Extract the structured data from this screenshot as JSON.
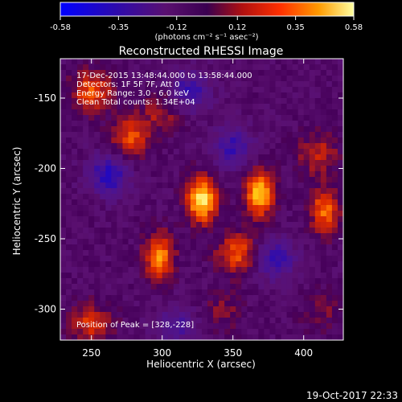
{
  "chart_data": {
    "type": "heatmap",
    "title": "Reconstructed RHESSI Image",
    "xlabel": "Heliocentric X (arcsec)",
    "ylabel": "Heliocentric Y (arcsec)",
    "xlim": [
      228,
      428
    ],
    "ylim": [
      -322,
      -122
    ],
    "x_ticks": [
      250,
      300,
      350,
      400
    ],
    "y_ticks": [
      -150,
      -200,
      -250,
      -300
    ],
    "colorbar": {
      "range": [
        -0.58,
        0.58
      ],
      "ticks": [
        "-0.58",
        "-0.35",
        "-0.12",
        "0.12",
        "0.35",
        "0.58"
      ],
      "tick_values": [
        -0.58,
        -0.35,
        -0.12,
        0.12,
        0.35,
        0.58
      ],
      "units": "(photons cm⁻² s⁻¹ asec⁻²)",
      "colormap": [
        "#0000ff",
        "#2a0aa0",
        "#5a1070",
        "#3a0060",
        "#b01010",
        "#ff3000",
        "#ff9a00",
        "#ffff90"
      ]
    },
    "annotations": [
      "17-Dec-2015 13:48:44.000 to 13:58:44.000",
      "Detectors: 1F 5F 7F, Att 0",
      "Energy Range: 3.0 - 6.0 keV",
      "Clean    Total counts: 1.34E+04"
    ],
    "peak_label": "Position of Peak = [328,-228]",
    "peak_position": [
      328,
      -228
    ],
    "sources": [
      {
        "x": 328,
        "y": -222,
        "value": 0.58
      },
      {
        "x": 369,
        "y": -218,
        "value": 0.5
      },
      {
        "x": 298,
        "y": -262,
        "value": 0.42
      },
      {
        "x": 353,
        "y": -260,
        "value": 0.32
      },
      {
        "x": 415,
        "y": -230,
        "value": 0.36
      },
      {
        "x": 410,
        "y": -190,
        "value": 0.22
      },
      {
        "x": 278,
        "y": -178,
        "value": 0.3
      },
      {
        "x": 250,
        "y": -145,
        "value": 0.32
      },
      {
        "x": 250,
        "y": -310,
        "value": 0.26
      },
      {
        "x": 300,
        "y": -160,
        "value": 0.18
      },
      {
        "x": 343,
        "y": -300,
        "value": 0.12
      },
      {
        "x": 413,
        "y": -300,
        "value": 0.12
      },
      {
        "x": 262,
        "y": -205,
        "value": -0.35
      },
      {
        "x": 380,
        "y": -265,
        "value": -0.3
      },
      {
        "x": 350,
        "y": -185,
        "value": -0.28
      },
      {
        "x": 320,
        "y": -145,
        "value": -0.3
      },
      {
        "x": 310,
        "y": -312,
        "value": -0.22
      }
    ]
  },
  "timestamp": "19-Oct-2017 22:33"
}
